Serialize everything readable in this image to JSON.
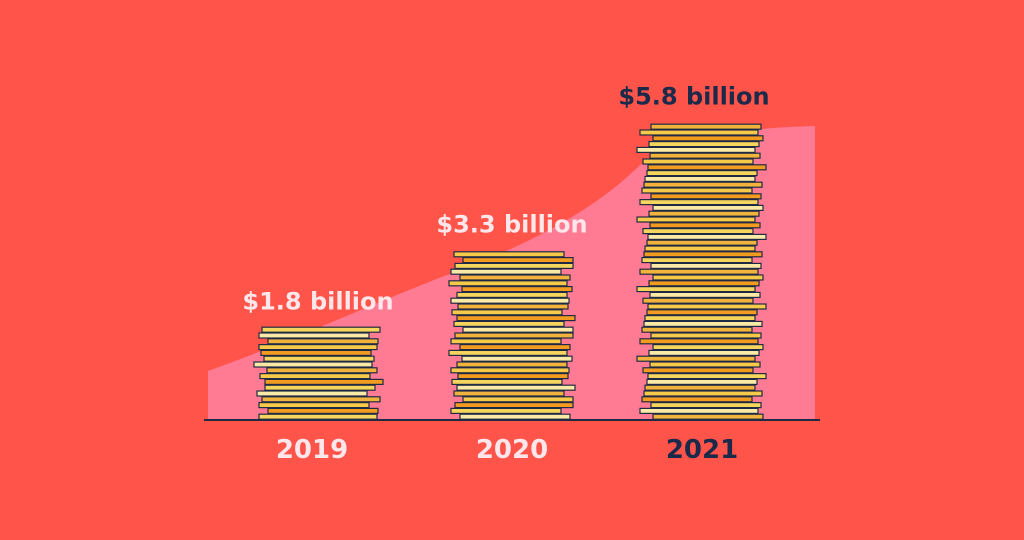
{
  "theme": {
    "background": "#FF5449",
    "area_fill": "#FF7A93",
    "baseline": "#1F2A44",
    "light_text": "#FFE6EA",
    "dark_text": "#1B2A4A",
    "coin_colors": [
      "#F6D55C",
      "#F2B33D",
      "#F29B1E",
      "#FBE9A6",
      "#F7C948"
    ],
    "coin_outline": "#1F2A44"
  },
  "chart_data": {
    "type": "bar",
    "categories": [
      "2019",
      "2020",
      "2021"
    ],
    "values": [
      1.8,
      3.3,
      5.8
    ],
    "data_labels": [
      "$1.8 billion",
      "$3.3 billion",
      "$5.8 billion"
    ],
    "title": "",
    "xlabel": "",
    "ylabel": "",
    "ylim": [
      0,
      6
    ],
    "grid": false,
    "highlight_index": 2
  }
}
